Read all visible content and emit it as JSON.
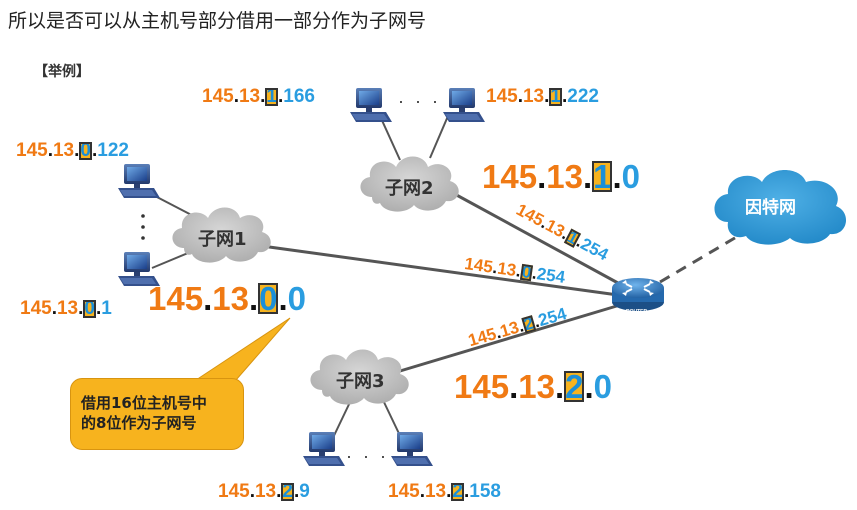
{
  "title": "所以是否可以从主机号部分借用一部分作为子网号",
  "example_tag": "【举例】",
  "subnets": {
    "s0": {
      "cloud": "子网1",
      "network": {
        "p1": "145",
        "p2": "13",
        "p3": "0",
        "p4": "0"
      }
    },
    "s1": {
      "cloud": "子网2",
      "network": {
        "p1": "145",
        "p2": "13",
        "p3": "1",
        "p4": "0"
      }
    },
    "s2": {
      "cloud": "子网3",
      "network": {
        "p1": "145",
        "p2": "13",
        "p3": "2",
        "p4": "0"
      }
    }
  },
  "hosts": {
    "h0a": {
      "p1": "145",
      "p2": "13",
      "p3": "0",
      "p4": "122"
    },
    "h0b": {
      "p1": "145",
      "p2": "13",
      "p3": "0",
      "p4": "1"
    },
    "h1a": {
      "p1": "145",
      "p2": "13",
      "p3": "1",
      "p4": "166"
    },
    "h1b": {
      "p1": "145",
      "p2": "13",
      "p3": "1",
      "p4": "222"
    },
    "h2a": {
      "p1": "145",
      "p2": "13",
      "p3": "2",
      "p4": "9"
    },
    "h2b": {
      "p1": "145",
      "p2": "13",
      "p3": "2",
      "p4": "158"
    }
  },
  "router_ifaces": {
    "r1": {
      "p1": "145",
      "p2": "13",
      "p3": "1",
      "p4": "254"
    },
    "r0": {
      "p1": "145",
      "p2": "13",
      "p3": "0",
      "p4": "254"
    },
    "r2": {
      "p1": "145",
      "p2": "13",
      "p3": "2",
      "p4": "254"
    }
  },
  "router_label": "ROUTER",
  "internet": "因特网",
  "ellipsis": "· · ·",
  "callout": {
    "line1": "借用16位主机号中",
    "line2": "的8位作为子网号"
  },
  "colors": {
    "orange": "#f07a14",
    "blue": "#2a9de0",
    "highlight": "#f7b31e",
    "cloud": "#b9b9b9",
    "internet": "#2f97d3"
  }
}
